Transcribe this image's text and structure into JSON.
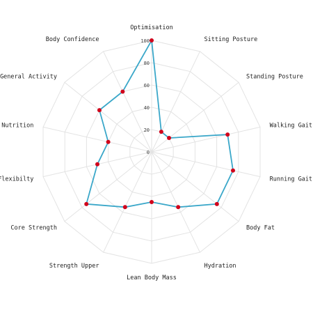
{
  "chart_data": {
    "type": "radar",
    "title": "",
    "axes": [
      "Optimisation",
      "Sitting Posture",
      "Standing Posture",
      "Walking Gait",
      "Running Gait",
      "Body Fat",
      "Hydration",
      "Lean Body Mass",
      "Strength Upper",
      "Core Strength",
      "Flexibilty",
      "Nutrition",
      "General Activity",
      "Body Confidence"
    ],
    "series": [
      {
        "values": [
          100,
          20,
          20,
          70,
          75,
          75,
          55,
          45,
          55,
          75,
          50,
          40,
          60,
          60
        ]
      }
    ],
    "r_range": [
      0,
      100
    ],
    "r_ticks": [
      "0",
      "20",
      "40",
      "60",
      "80",
      "100"
    ],
    "grid": true,
    "legend": "none",
    "colors": {
      "line": "#3aa7c9",
      "marker": "#d0021b",
      "grid": "#e3e3e3",
      "background": "#ffffff"
    }
  }
}
